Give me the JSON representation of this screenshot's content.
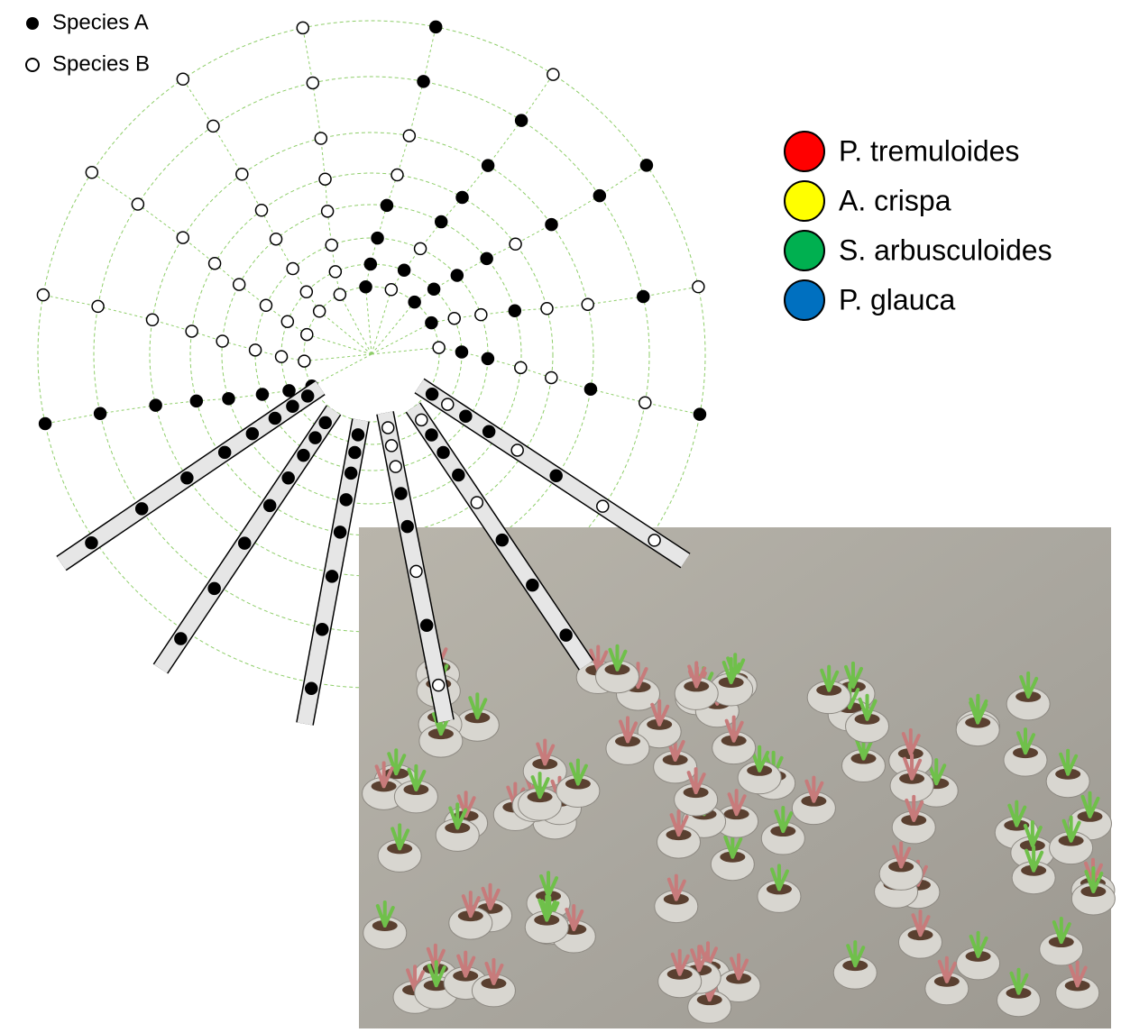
{
  "legend": {
    "items": [
      "Species A",
      "Species B"
    ]
  },
  "species": [
    {
      "name": "P. tremuloides",
      "color": "#ff0000"
    },
    {
      "name": "A. crispa",
      "color": "#ffff00"
    },
    {
      "name": "S. arbusculoides",
      "color": "#00b050"
    },
    {
      "name": "P. glauca",
      "color": "#0070c0"
    }
  ]
}
